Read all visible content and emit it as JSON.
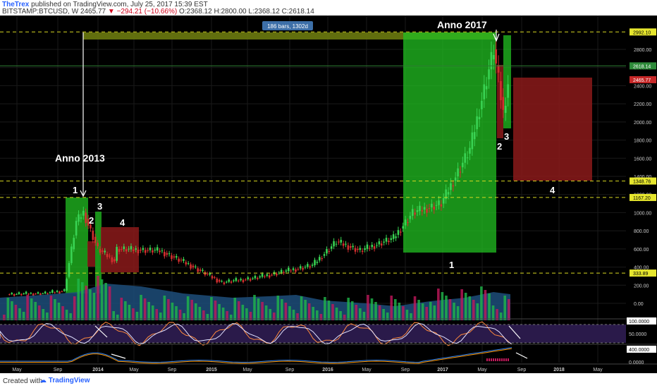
{
  "header": {
    "author": "TheTrex",
    "published": "published on TradingView.com, July 25, 2017 15:39 EST",
    "symbol": "BITSTAMP:BTCUSD, W",
    "last": "2465.77",
    "change": "−294.21 (−10.66%)",
    "ohlc": "O:2368.12 H:2800.00 L:2368.12 C:2618.14"
  },
  "footer": {
    "created": "Created with",
    "brand": "TradingView"
  },
  "colors": {
    "bg": "#000000",
    "up": "#39d353",
    "down": "#d32f2f",
    "green_zone": "#22c022",
    "red_zone": "#8b1a1a",
    "yellow_line": "#d8d820",
    "osc_bg": "#2a1a4a"
  },
  "chart_data": [
    {
      "type": "candlestick",
      "x_axis": {
        "labels": [
          "May",
          "Sep",
          "2014",
          "May",
          "Sep",
          "2015",
          "May",
          "Sep",
          "2016",
          "May",
          "Sep",
          "2017",
          "May",
          "Sep",
          "2018",
          "May"
        ]
      },
      "y_axis": {
        "labels": [
          "2800.00",
          "2600.00",
          "2400.00",
          "2200.00",
          "2000.00",
          "1800.00",
          "1600.00",
          "1400.00",
          "1200.00",
          "1000.00",
          "800.00",
          "600.00",
          "400.00",
          "200.00",
          "0.00"
        ],
        "ylim": [
          0,
          3000
        ]
      },
      "price_tags": [
        {
          "value": 2992.1,
          "label": "2992.10",
          "style": "yellow"
        },
        {
          "value": 2618.14,
          "label": "2618.14",
          "style": "green"
        },
        {
          "value": 2465.77,
          "label": "2465.77",
          "style": "red"
        },
        {
          "value": 1348.76,
          "label": "1348.76",
          "style": "yellow"
        },
        {
          "value": 1167.2,
          "label": "1167.20",
          "style": "yellow"
        },
        {
          "value": 333.89,
          "label": "333.89",
          "style": "yellow"
        }
      ],
      "annotations": {
        "anno_2013": "Anno 2013",
        "anno_2017": "Anno 2017",
        "bars_label": "186 bars, 1302d",
        "waves_2013": [
          "1",
          "2",
          "3",
          "4"
        ],
        "waves_2017": [
          "1",
          "2",
          "3",
          "4"
        ]
      }
    },
    {
      "type": "oscillator",
      "name": "stochastic",
      "y_labels": [
        "100.0000",
        "50.0000"
      ]
    },
    {
      "type": "oscillator",
      "name": "macd",
      "y_labels": [
        "400.0000",
        "0.0000"
      ]
    }
  ]
}
